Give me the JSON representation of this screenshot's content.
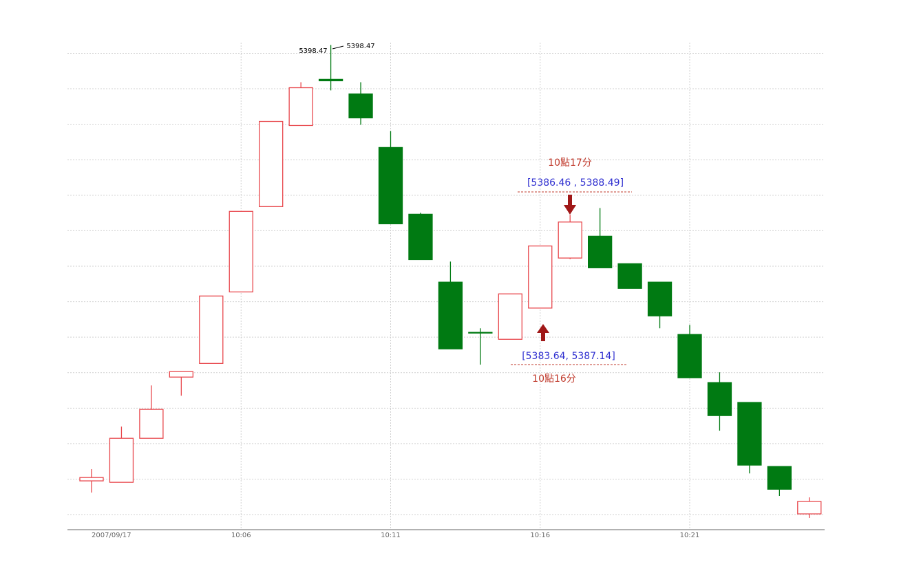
{
  "chart_data": {
    "type": "candlestick",
    "categories": [
      "2007/09/17",
      null,
      null,
      null,
      null,
      "10:06",
      null,
      null,
      null,
      null,
      "10:11",
      null,
      null,
      null,
      null,
      "10:16",
      null,
      null,
      null,
      null,
      "10:21",
      null,
      null,
      null,
      null
    ],
    "open": [
      5373.9,
      5373.82,
      5376.3,
      5379.75,
      5380.52,
      5384.55,
      5389.36,
      5393.93,
      5396.53,
      5395.71,
      5392.69,
      5388.93,
      5385.1,
      5382.27,
      5381.88,
      5383.64,
      5386.46,
      5387.69,
      5386.14,
      5385.1,
      5382.15,
      5379.44,
      5378.32,
      5374.71,
      5372.04
    ],
    "high": [
      5374.56,
      5376.96,
      5379.28,
      5380.06,
      5384.32,
      5389.09,
      5394.16,
      5396.37,
      5398.47,
      5396.37,
      5393.62,
      5389.01,
      5386.26,
      5382.5,
      5384.44,
      5387.14,
      5388.9,
      5389.28,
      5386.14,
      5385.1,
      5382.69,
      5380.02,
      5378.32,
      5374.71,
      5372.97
    ],
    "low": [
      5373.24,
      5373.82,
      5376.3,
      5378.7,
      5380.52,
      5384.55,
      5389.36,
      5393.93,
      5395.91,
      5393.97,
      5388.39,
      5386.37,
      5381.34,
      5380.45,
      5381.88,
      5383.64,
      5386.4,
      5385.91,
      5384.75,
      5382.5,
      5379.71,
      5376.73,
      5374.32,
      5373.05,
      5371.81
    ],
    "close": [
      5374.09,
      5376.3,
      5377.93,
      5380.06,
      5384.32,
      5389.09,
      5394.16,
      5396.06,
      5396.45,
      5394.36,
      5388.39,
      5386.37,
      5381.34,
      5382.27,
      5384.44,
      5387.14,
      5388.49,
      5385.91,
      5384.75,
      5383.2,
      5379.71,
      5377.58,
      5374.79,
      5373.43,
      5372.74
    ],
    "up_color": "#e8474c",
    "down_color": "#007a12",
    "ylim": [
      5371.15,
      5398.6
    ],
    "yticks": [
      5372,
      5374,
      5376,
      5378,
      5380,
      5382,
      5384,
      5386,
      5388,
      5390,
      5392,
      5394,
      5396,
      5398
    ],
    "grid": true,
    "annotations": [
      "5398.47",
      "5398.47",
      "10點17分",
      "[5386.46 , 5388.49]",
      "[5383.64, 5387.14]",
      "10點16分"
    ]
  }
}
